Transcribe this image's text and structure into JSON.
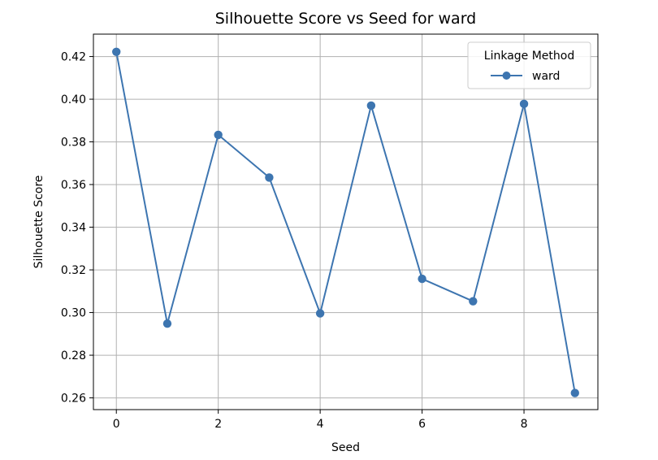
{
  "chart_data": {
    "type": "line",
    "title": "Silhouette Score vs Seed for ward",
    "xlabel": "Seed",
    "ylabel": "Silhouette Score",
    "xlim": [
      -0.45,
      9.45
    ],
    "ylim": [
      0.2545,
      0.4305
    ],
    "x_ticks": [
      0,
      2,
      4,
      6,
      8
    ],
    "y_ticks": [
      0.26,
      0.28,
      0.3,
      0.32,
      0.34,
      0.36,
      0.38,
      0.4,
      0.42
    ],
    "x_tick_labels": [
      "0",
      "2",
      "4",
      "6",
      "8"
    ],
    "y_tick_labels": [
      "0.26",
      "0.28",
      "0.30",
      "0.32",
      "0.34",
      "0.36",
      "0.38",
      "0.40",
      "0.42"
    ],
    "grid": true,
    "legend": {
      "title": "Linkage Method",
      "placement": "top-right",
      "entries": [
        "ward"
      ]
    },
    "series": [
      {
        "name": "ward",
        "color": "#3d75b0",
        "marker": "circle",
        "x": [
          0,
          1,
          2,
          3,
          4,
          5,
          6,
          7,
          8,
          9
        ],
        "values": [
          0.4222,
          0.2948,
          0.3833,
          0.3633,
          0.2996,
          0.397,
          0.3158,
          0.3053,
          0.3978,
          0.2623
        ]
      }
    ]
  }
}
